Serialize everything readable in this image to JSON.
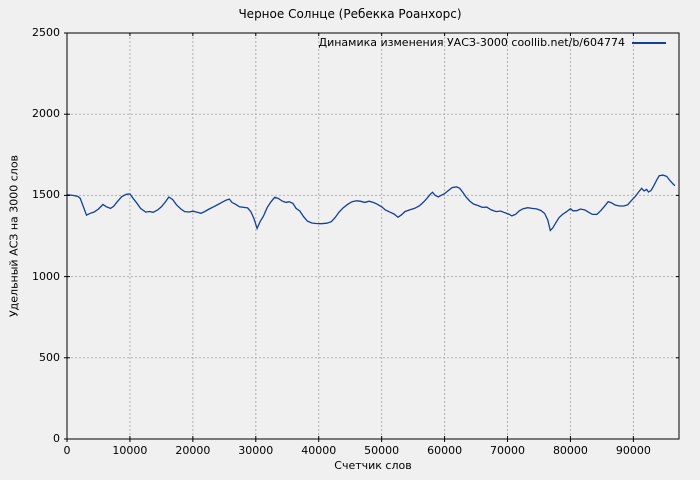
{
  "title": "Черное Солнце (Ребекка Роанхорс)",
  "colors": {
    "background": "#f0f0f0",
    "border": "#000000",
    "grid": "#b0b0b0",
    "series": "#123f9b",
    "text": "#000000"
  },
  "chart_data": {
    "type": "line",
    "title": "Черное Солнце (Ребекка Роанхорс)",
    "xlabel": "Счетчик слов",
    "ylabel": "Удельный АСЗ на 3000 слов",
    "grid": true,
    "legend_position": "top-right-inside",
    "xlim": [
      0,
      97250
    ],
    "ylim": [
      0,
      2500
    ],
    "x_ticks": [
      0,
      10000,
      20000,
      30000,
      40000,
      50000,
      60000,
      70000,
      80000,
      90000
    ],
    "y_ticks": [
      0,
      500,
      1000,
      1500,
      2000,
      2500
    ],
    "series": [
      {
        "name": "Динамика изменения УАСЗ-3000 coollib.net/b/604774",
        "color": "#123f9b",
        "points": [
          [
            0,
            1505
          ],
          [
            900,
            1500
          ],
          [
            1700,
            1494
          ],
          [
            2100,
            1482
          ],
          [
            2600,
            1430
          ],
          [
            3100,
            1379
          ],
          [
            3700,
            1390
          ],
          [
            4300,
            1398
          ],
          [
            5000,
            1416
          ],
          [
            5700,
            1444
          ],
          [
            6200,
            1431
          ],
          [
            6900,
            1420
          ],
          [
            7400,
            1432
          ],
          [
            8000,
            1461
          ],
          [
            8700,
            1492
          ],
          [
            9400,
            1507
          ],
          [
            10000,
            1509
          ],
          [
            10500,
            1482
          ],
          [
            11100,
            1452
          ],
          [
            11700,
            1420
          ],
          [
            12500,
            1397
          ],
          [
            13100,
            1401
          ],
          [
            13700,
            1396
          ],
          [
            14400,
            1410
          ],
          [
            15000,
            1430
          ],
          [
            15600,
            1459
          ],
          [
            16200,
            1490
          ],
          [
            16800,
            1474
          ],
          [
            17400,
            1442
          ],
          [
            18100,
            1416
          ],
          [
            18700,
            1400
          ],
          [
            19400,
            1398
          ],
          [
            20000,
            1403
          ],
          [
            20700,
            1396
          ],
          [
            21300,
            1390
          ],
          [
            21900,
            1401
          ],
          [
            22600,
            1416
          ],
          [
            23300,
            1430
          ],
          [
            24000,
            1444
          ],
          [
            24700,
            1459
          ],
          [
            25300,
            1471
          ],
          [
            25800,
            1477
          ],
          [
            26200,
            1457
          ],
          [
            26800,
            1445
          ],
          [
            27400,
            1430
          ],
          [
            28100,
            1426
          ],
          [
            28700,
            1423
          ],
          [
            29200,
            1400
          ],
          [
            29700,
            1358
          ],
          [
            30200,
            1297
          ],
          [
            30700,
            1340
          ],
          [
            31200,
            1370
          ],
          [
            31800,
            1424
          ],
          [
            32400,
            1460
          ],
          [
            33000,
            1488
          ],
          [
            33600,
            1481
          ],
          [
            34200,
            1465
          ],
          [
            34800,
            1457
          ],
          [
            35300,
            1461
          ],
          [
            35900,
            1451
          ],
          [
            36400,
            1420
          ],
          [
            37000,
            1404
          ],
          [
            37600,
            1369
          ],
          [
            38200,
            1342
          ],
          [
            38900,
            1330
          ],
          [
            39600,
            1327
          ],
          [
            40400,
            1326
          ],
          [
            41300,
            1329
          ],
          [
            42000,
            1338
          ],
          [
            42600,
            1363
          ],
          [
            43200,
            1396
          ],
          [
            43900,
            1424
          ],
          [
            44600,
            1445
          ],
          [
            45300,
            1461
          ],
          [
            46000,
            1467
          ],
          [
            46600,
            1464
          ],
          [
            47300,
            1457
          ],
          [
            48000,
            1464
          ],
          [
            48700,
            1456
          ],
          [
            49300,
            1446
          ],
          [
            50000,
            1430
          ],
          [
            50600,
            1410
          ],
          [
            51300,
            1397
          ],
          [
            52000,
            1385
          ],
          [
            52600,
            1366
          ],
          [
            53100,
            1379
          ],
          [
            53700,
            1400
          ],
          [
            54400,
            1410
          ],
          [
            55200,
            1420
          ],
          [
            56000,
            1436
          ],
          [
            56600,
            1457
          ],
          [
            57200,
            1482
          ],
          [
            57800,
            1510
          ],
          [
            58100,
            1519
          ],
          [
            58500,
            1500
          ],
          [
            59000,
            1491
          ],
          [
            59500,
            1501
          ],
          [
            60000,
            1511
          ],
          [
            60600,
            1530
          ],
          [
            61200,
            1548
          ],
          [
            61900,
            1553
          ],
          [
            62400,
            1544
          ],
          [
            62900,
            1519
          ],
          [
            63400,
            1490
          ],
          [
            64000,
            1465
          ],
          [
            64600,
            1447
          ],
          [
            65300,
            1438
          ],
          [
            66000,
            1426
          ],
          [
            66700,
            1428
          ],
          [
            67400,
            1411
          ],
          [
            68200,
            1400
          ],
          [
            68900,
            1404
          ],
          [
            69600,
            1393
          ],
          [
            70200,
            1385
          ],
          [
            70700,
            1374
          ],
          [
            71300,
            1384
          ],
          [
            71900,
            1406
          ],
          [
            72500,
            1418
          ],
          [
            73200,
            1424
          ],
          [
            73900,
            1420
          ],
          [
            74600,
            1417
          ],
          [
            75300,
            1407
          ],
          [
            75900,
            1389
          ],
          [
            76400,
            1348
          ],
          [
            76800,
            1284
          ],
          [
            77200,
            1300
          ],
          [
            77700,
            1334
          ],
          [
            78200,
            1364
          ],
          [
            78800,
            1385
          ],
          [
            79400,
            1400
          ],
          [
            80000,
            1418
          ],
          [
            80400,
            1405
          ],
          [
            81000,
            1406
          ],
          [
            81600,
            1416
          ],
          [
            82300,
            1410
          ],
          [
            82900,
            1396
          ],
          [
            83500,
            1383
          ],
          [
            84200,
            1383
          ],
          [
            84800,
            1406
          ],
          [
            85400,
            1432
          ],
          [
            86000,
            1462
          ],
          [
            86500,
            1455
          ],
          [
            87100,
            1441
          ],
          [
            87800,
            1435
          ],
          [
            88500,
            1435
          ],
          [
            89100,
            1442
          ],
          [
            89700,
            1469
          ],
          [
            90300,
            1494
          ],
          [
            90900,
            1524
          ],
          [
            91300,
            1544
          ],
          [
            91700,
            1528
          ],
          [
            92100,
            1537
          ],
          [
            92400,
            1521
          ],
          [
            92800,
            1530
          ],
          [
            93200,
            1556
          ],
          [
            93700,
            1594
          ],
          [
            94100,
            1621
          ],
          [
            94700,
            1625
          ],
          [
            95300,
            1617
          ],
          [
            95800,
            1592
          ],
          [
            96300,
            1571
          ],
          [
            96600,
            1560
          ]
        ]
      }
    ]
  }
}
